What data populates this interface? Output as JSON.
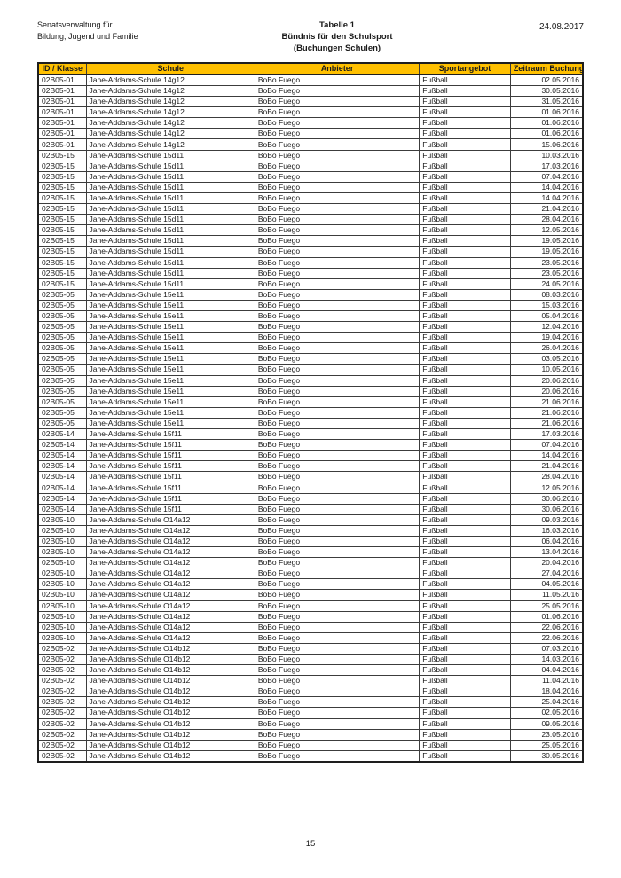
{
  "document": {
    "org_line1": "Senatsverwaltung für",
    "org_line2": "Bildung, Jugend und Familie",
    "title_line1": "Tabelle 1",
    "title_line2": "Bündnis für den Schulsport",
    "title_line3": "(Buchungen Schulen)",
    "date": "24.08.2017",
    "page_number": "15"
  },
  "colors": {
    "header_bg": "#FFC000",
    "border": "#3c3c3c",
    "text": "#1a1a1a"
  },
  "table": {
    "columns": [
      "ID / Klasse",
      "Schule",
      "Anbieter",
      "Sportangebot",
      "Zeitraum Buchung"
    ],
    "rows": [
      [
        "02B05-01",
        "Jane-Addams-Schule 14g12",
        "BoBo Fuego",
        "Fußball",
        "02.05.2016"
      ],
      [
        "02B05-01",
        "Jane-Addams-Schule 14g12",
        "BoBo Fuego",
        "Fußball",
        "30.05.2016"
      ],
      [
        "02B05-01",
        "Jane-Addams-Schule 14g12",
        "BoBo Fuego",
        "Fußball",
        "31.05.2016"
      ],
      [
        "02B05-01",
        "Jane-Addams-Schule 14g12",
        "BoBo Fuego",
        "Fußball",
        "01.06.2016"
      ],
      [
        "02B05-01",
        "Jane-Addams-Schule 14g12",
        "BoBo Fuego",
        "Fußball",
        "01.06.2016"
      ],
      [
        "02B05-01",
        "Jane-Addams-Schule 14g12",
        "BoBo Fuego",
        "Fußball",
        "01.06.2016"
      ],
      [
        "02B05-01",
        "Jane-Addams-Schule 14g12",
        "BoBo Fuego",
        "Fußball",
        "15.06.2016"
      ],
      [
        "02B05-15",
        "Jane-Addams-Schule 15d11",
        "BoBo Fuego",
        "Fußball",
        "10.03.2016"
      ],
      [
        "02B05-15",
        "Jane-Addams-Schule 15d11",
        "BoBo Fuego",
        "Fußball",
        "17.03.2016"
      ],
      [
        "02B05-15",
        "Jane-Addams-Schule 15d11",
        "BoBo Fuego",
        "Fußball",
        "07.04.2016"
      ],
      [
        "02B05-15",
        "Jane-Addams-Schule 15d11",
        "BoBo Fuego",
        "Fußball",
        "14.04.2016"
      ],
      [
        "02B05-15",
        "Jane-Addams-Schule 15d11",
        "BoBo Fuego",
        "Fußball",
        "14.04.2016"
      ],
      [
        "02B05-15",
        "Jane-Addams-Schule 15d11",
        "BoBo Fuego",
        "Fußball",
        "21.04.2016"
      ],
      [
        "02B05-15",
        "Jane-Addams-Schule 15d11",
        "BoBo Fuego",
        "Fußball",
        "28.04.2016"
      ],
      [
        "02B05-15",
        "Jane-Addams-Schule 15d11",
        "BoBo Fuego",
        "Fußball",
        "12.05.2016"
      ],
      [
        "02B05-15",
        "Jane-Addams-Schule 15d11",
        "BoBo Fuego",
        "Fußball",
        "19.05.2016"
      ],
      [
        "02B05-15",
        "Jane-Addams-Schule 15d11",
        "BoBo Fuego",
        "Fußball",
        "19.05.2016"
      ],
      [
        "02B05-15",
        "Jane-Addams-Schule 15d11",
        "BoBo Fuego",
        "Fußball",
        "23.05.2016"
      ],
      [
        "02B05-15",
        "Jane-Addams-Schule 15d11",
        "BoBo Fuego",
        "Fußball",
        "23.05.2016"
      ],
      [
        "02B05-15",
        "Jane-Addams-Schule 15d11",
        "BoBo Fuego",
        "Fußball",
        "24.05.2016"
      ],
      [
        "02B05-05",
        "Jane-Addams-Schule 15e11",
        "BoBo Fuego",
        "Fußball",
        "08.03.2016"
      ],
      [
        "02B05-05",
        "Jane-Addams-Schule 15e11",
        "BoBo Fuego",
        "Fußball",
        "15.03.2016"
      ],
      [
        "02B05-05",
        "Jane-Addams-Schule 15e11",
        "BoBo Fuego",
        "Fußball",
        "05.04.2016"
      ],
      [
        "02B05-05",
        "Jane-Addams-Schule 15e11",
        "BoBo Fuego",
        "Fußball",
        "12.04.2016"
      ],
      [
        "02B05-05",
        "Jane-Addams-Schule 15e11",
        "BoBo Fuego",
        "Fußball",
        "19.04.2016"
      ],
      [
        "02B05-05",
        "Jane-Addams-Schule 15e11",
        "BoBo Fuego",
        "Fußball",
        "26.04.2016"
      ],
      [
        "02B05-05",
        "Jane-Addams-Schule 15e11",
        "BoBo Fuego",
        "Fußball",
        "03.05.2016"
      ],
      [
        "02B05-05",
        "Jane-Addams-Schule 15e11",
        "BoBo Fuego",
        "Fußball",
        "10.05.2016"
      ],
      [
        "02B05-05",
        "Jane-Addams-Schule 15e11",
        "BoBo Fuego",
        "Fußball",
        "20.06.2016"
      ],
      [
        "02B05-05",
        "Jane-Addams-Schule 15e11",
        "BoBo Fuego",
        "Fußball",
        "20.06.2016"
      ],
      [
        "02B05-05",
        "Jane-Addams-Schule 15e11",
        "BoBo Fuego",
        "Fußball",
        "21.06.2016"
      ],
      [
        "02B05-05",
        "Jane-Addams-Schule 15e11",
        "BoBo Fuego",
        "Fußball",
        "21.06.2016"
      ],
      [
        "02B05-05",
        "Jane-Addams-Schule 15e11",
        "BoBo Fuego",
        "Fußball",
        "21.06.2016"
      ],
      [
        "02B05-14",
        "Jane-Addams-Schule 15f11",
        "BoBo Fuego",
        "Fußball",
        "17.03.2016"
      ],
      [
        "02B05-14",
        "Jane-Addams-Schule 15f11",
        "BoBo Fuego",
        "Fußball",
        "07.04.2016"
      ],
      [
        "02B05-14",
        "Jane-Addams-Schule 15f11",
        "BoBo Fuego",
        "Fußball",
        "14.04.2016"
      ],
      [
        "02B05-14",
        "Jane-Addams-Schule 15f11",
        "BoBo Fuego",
        "Fußball",
        "21.04.2016"
      ],
      [
        "02B05-14",
        "Jane-Addams-Schule 15f11",
        "BoBo Fuego",
        "Fußball",
        "28.04.2016"
      ],
      [
        "02B05-14",
        "Jane-Addams-Schule 15f11",
        "BoBo Fuego",
        "Fußball",
        "12.05.2016"
      ],
      [
        "02B05-14",
        "Jane-Addams-Schule 15f11",
        "BoBo Fuego",
        "Fußball",
        "30.06.2016"
      ],
      [
        "02B05-14",
        "Jane-Addams-Schule 15f11",
        "BoBo Fuego",
        "Fußball",
        "30.06.2016"
      ],
      [
        "02B05-10",
        "Jane-Addams-Schule O14a12",
        "BoBo Fuego",
        "Fußball",
        "09.03.2016"
      ],
      [
        "02B05-10",
        "Jane-Addams-Schule O14a12",
        "BoBo Fuego",
        "Fußball",
        "16.03.2016"
      ],
      [
        "02B05-10",
        "Jane-Addams-Schule O14a12",
        "BoBo Fuego",
        "Fußball",
        "06.04.2016"
      ],
      [
        "02B05-10",
        "Jane-Addams-Schule O14a12",
        "BoBo Fuego",
        "Fußball",
        "13.04.2016"
      ],
      [
        "02B05-10",
        "Jane-Addams-Schule O14a12",
        "BoBo Fuego",
        "Fußball",
        "20.04.2016"
      ],
      [
        "02B05-10",
        "Jane-Addams-Schule O14a12",
        "BoBo Fuego",
        "Fußball",
        "27.04.2016"
      ],
      [
        "02B05-10",
        "Jane-Addams-Schule O14a12",
        "BoBo Fuego",
        "Fußball",
        "04.05.2016"
      ],
      [
        "02B05-10",
        "Jane-Addams-Schule O14a12",
        "BoBo Fuego",
        "Fußball",
        "11.05.2016"
      ],
      [
        "02B05-10",
        "Jane-Addams-Schule O14a12",
        "BoBo Fuego",
        "Fußball",
        "25.05.2016"
      ],
      [
        "02B05-10",
        "Jane-Addams-Schule O14a12",
        "BoBo Fuego",
        "Fußball",
        "01.06.2016"
      ],
      [
        "02B05-10",
        "Jane-Addams-Schule O14a12",
        "BoBo Fuego",
        "Fußball",
        "22.06.2016"
      ],
      [
        "02B05-10",
        "Jane-Addams-Schule O14a12",
        "BoBo Fuego",
        "Fußball",
        "22.06.2016"
      ],
      [
        "02B05-02",
        "Jane-Addams-Schule O14b12",
        "BoBo Fuego",
        "Fußball",
        "07.03.2016"
      ],
      [
        "02B05-02",
        "Jane-Addams-Schule O14b12",
        "BoBo Fuego",
        "Fußball",
        "14.03.2016"
      ],
      [
        "02B05-02",
        "Jane-Addams-Schule O14b12",
        "BoBo Fuego",
        "Fußball",
        "04.04.2016"
      ],
      [
        "02B05-02",
        "Jane-Addams-Schule O14b12",
        "BoBo Fuego",
        "Fußball",
        "11.04.2016"
      ],
      [
        "02B05-02",
        "Jane-Addams-Schule O14b12",
        "BoBo Fuego",
        "Fußball",
        "18.04.2016"
      ],
      [
        "02B05-02",
        "Jane-Addams-Schule O14b12",
        "BoBo Fuego",
        "Fußball",
        "25.04.2016"
      ],
      [
        "02B05-02",
        "Jane-Addams-Schule O14b12",
        "BoBo Fuego",
        "Fußball",
        "02.05.2016"
      ],
      [
        "02B05-02",
        "Jane-Addams-Schule O14b12",
        "BoBo Fuego",
        "Fußball",
        "09.05.2016"
      ],
      [
        "02B05-02",
        "Jane-Addams-Schule O14b12",
        "BoBo Fuego",
        "Fußball",
        "23.05.2016"
      ],
      [
        "02B05-02",
        "Jane-Addams-Schule O14b12",
        "BoBo Fuego",
        "Fußball",
        "25.05.2016"
      ],
      [
        "02B05-02",
        "Jane-Addams-Schule O14b12",
        "BoBo Fuego",
        "Fußball",
        "30.05.2016"
      ]
    ]
  }
}
